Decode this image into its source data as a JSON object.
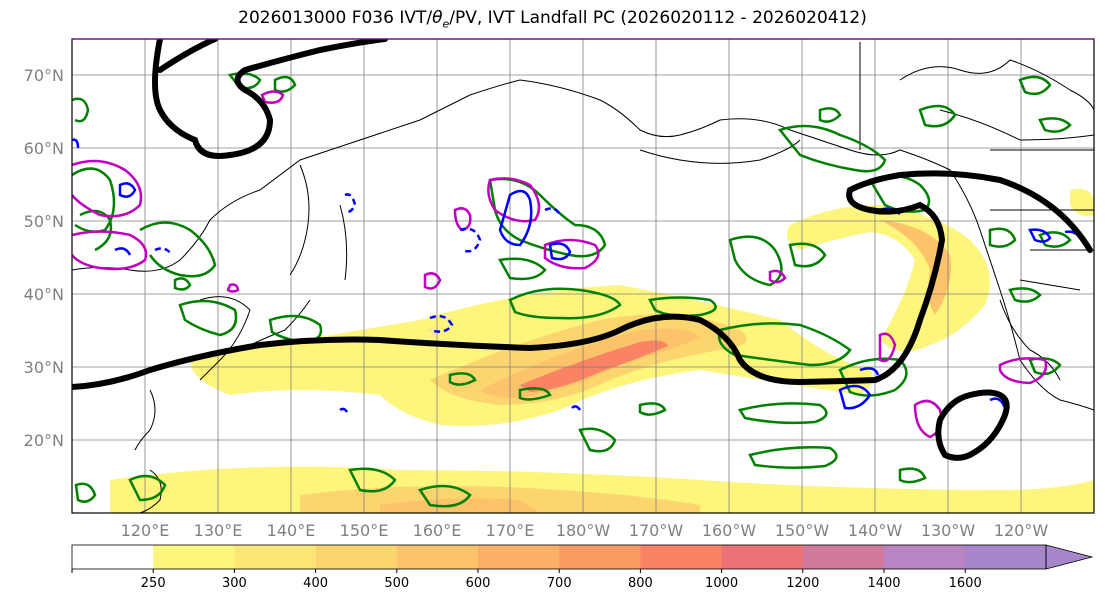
{
  "title": {
    "prefix": "2026013000 F036 IVT/",
    "theta": "θ",
    "theta_sub": "e",
    "suffix": "/PV, IVT Landfall PC (2026020112 - 2026020412)"
  },
  "lat_labels": [
    "70°N",
    "60°N",
    "50°N",
    "40°N",
    "30°N",
    "20°N"
  ],
  "lon_labels": [
    "120°E",
    "130°E",
    "140°E",
    "150°E",
    "160°E",
    "170°E",
    "180°W",
    "170°W",
    "160°W",
    "150°W",
    "140°W",
    "130°W",
    "120°W"
  ],
  "colorbar": {
    "ticks": [
      "250",
      "300",
      "400",
      "500",
      "600",
      "700",
      "800",
      "1000",
      "1200",
      "1400",
      "1600"
    ],
    "colors": [
      "#ffffff",
      "#fdf57c",
      "#fde675",
      "#fdd56f",
      "#fdc36a",
      "#fcb066",
      "#fb9b64",
      "#f98363",
      "#ec7276",
      "#d27a9e",
      "#b884c3",
      "#a786cc"
    ]
  },
  "layer_colors": {
    "ivt_low": "#fdf57c",
    "ivt_mid": "#fdc36a",
    "ivt_high": "#f98363",
    "theta_e": "#008000",
    "pv_magenta": "#c000c0",
    "pv_blue": "#0000ff",
    "landfall_contour": "#000000"
  }
}
